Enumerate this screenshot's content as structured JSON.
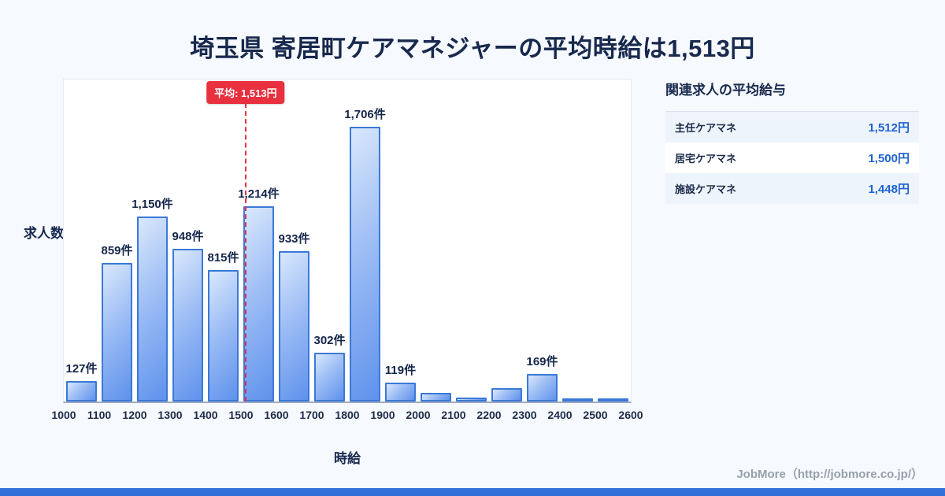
{
  "title": "埼玉県 寄居町ケアマネジャーの平均時給は1,513円",
  "chart_data": {
    "type": "bar",
    "title": "埼玉県 寄居町ケアマネジャーの平均時給は1,513円",
    "xlabel": "時給",
    "ylabel": "求人数",
    "xmin": 1000,
    "xmax": 2600,
    "y_scale_max": 2000,
    "x_ticks": [
      "1000",
      "1100",
      "1200",
      "1300",
      "1400",
      "1500",
      "1600",
      "1700",
      "1800",
      "1900",
      "2000",
      "2100",
      "2200",
      "2300",
      "2400",
      "2500",
      "2600"
    ],
    "bin_starts": [
      1000,
      1100,
      1200,
      1300,
      1400,
      1500,
      1600,
      1700,
      1800,
      1900,
      2000,
      2100,
      2200,
      2300,
      2400,
      2500
    ],
    "values": [
      127,
      859,
      1150,
      948,
      815,
      1214,
      933,
      302,
      1706,
      119,
      55,
      25,
      85,
      169,
      18,
      12
    ],
    "bar_labels": [
      "127件",
      "859件",
      "1,150件",
      "948件",
      "815件",
      "1,214件",
      "933件",
      "302件",
      "1,706件",
      "119件",
      "",
      "",
      "",
      "169件",
      "",
      ""
    ],
    "average": {
      "value": 1513,
      "label": "平均: 1,513円"
    },
    "grid": false,
    "legend": false
  },
  "side_panel": {
    "heading": "関連求人の平均給与",
    "rows": [
      {
        "label": "主任ケアマネ",
        "value": "1,512円"
      },
      {
        "label": "居宅ケアマネ",
        "value": "1,500円"
      },
      {
        "label": "施設ケアマネ",
        "value": "1,448円"
      }
    ]
  },
  "footer": {
    "credit": "JobMore（http://jobmore.co.jp/）"
  },
  "colors": {
    "bar_fill_light": "#d9e8fc",
    "bar_fill_dark": "#5f92ec",
    "bar_border": "#3b79d8",
    "average_line_red": "#e8303f",
    "value_blue": "#1e63d0",
    "title_navy": "#18294e",
    "bottom_accent_blue": "#3070d8",
    "page_background": "#f6f9fd"
  }
}
